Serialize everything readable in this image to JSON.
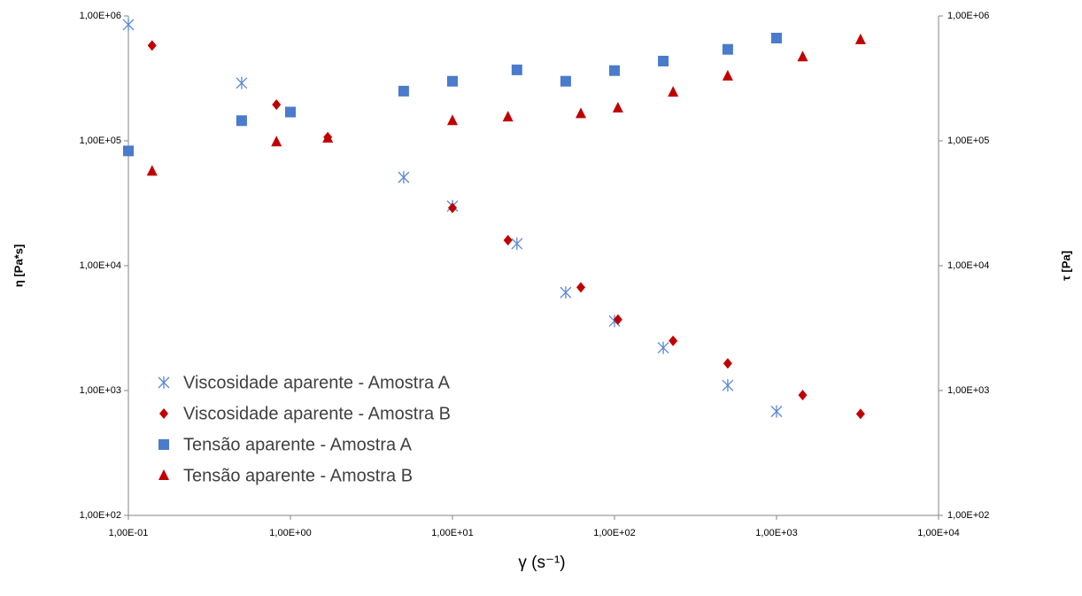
{
  "chart_data": {
    "type": "scatter",
    "x_label": "γ  (s⁻¹)",
    "y_label": "η [Pa*s]",
    "y2_label": "τ [Pa]",
    "log_x": true,
    "log_y": true,
    "grid": false,
    "legend": "lower-left",
    "xlim": [
      0.1,
      10000
    ],
    "xticks": [
      {
        "value": 0.1,
        "label": "1,00E-01"
      },
      {
        "value": 1,
        "label": "1,00E+00"
      },
      {
        "value": 10,
        "label": "1,00E+01"
      },
      {
        "value": 100,
        "label": "1,00E+02"
      },
      {
        "value": 1000,
        "label": "1,00E+03"
      },
      {
        "value": 10000,
        "label": "1,00E+04"
      }
    ],
    "ylim": [
      100,
      1000000
    ],
    "yticks": [
      {
        "value": 100,
        "label": "1,00E+02"
      },
      {
        "value": 1000,
        "label": "1,00E+03"
      },
      {
        "value": 10000,
        "label": "1,00E+04"
      },
      {
        "value": 100000,
        "label": "1,00E+05"
      },
      {
        "value": 1000000,
        "label": "1,00E+06"
      }
    ],
    "y2lim": [
      100,
      1000000
    ],
    "y2ticks": [
      {
        "value": 100,
        "label": "1,00E+02"
      },
      {
        "value": 1000,
        "label": "1,00E+03"
      },
      {
        "value": 10000,
        "label": "1,00E+04"
      },
      {
        "value": 100000,
        "label": "1,00E+05"
      },
      {
        "value": 1000000,
        "label": "1,00E+06"
      }
    ],
    "series": [
      {
        "name": "Viscosidade aparente - Amostra A",
        "color": "#5b87d6",
        "marker": "asterisk",
        "x": [
          0.1,
          0.5,
          5,
          10,
          25,
          50,
          100,
          200,
          500,
          1000
        ],
        "values": [
          850000,
          290000,
          51000,
          30000,
          15000,
          6100,
          3600,
          2200,
          1100,
          680
        ]
      },
      {
        "name": "Viscosidade aparente - Amostra B",
        "color": "#c00000",
        "marker": "diamond",
        "x": [
          0.14,
          0.82,
          1.7,
          10,
          22,
          62,
          105,
          230,
          500,
          1450,
          3300
        ],
        "values": [
          580000,
          195000,
          107000,
          29000,
          16000,
          6700,
          3700,
          2500,
          1650,
          920,
          650
        ]
      },
      {
        "name": "Tensão aparente - Amostra A",
        "color": "#4a7bcc",
        "marker": "square",
        "axis": "y2",
        "x": [
          0.1,
          0.5,
          1,
          5,
          10,
          25,
          50,
          100,
          200,
          500,
          1000
        ],
        "values": [
          83000,
          145000,
          170000,
          250000,
          300000,
          370000,
          300000,
          365000,
          435000,
          540000,
          665000
        ]
      },
      {
        "name": "Tensão aparente - Amostra B",
        "color": "#c00000",
        "marker": "triangle",
        "axis": "y2",
        "x": [
          0.14,
          0.82,
          1.7,
          10,
          22,
          62,
          105,
          230,
          500,
          1450,
          3300
        ],
        "values": [
          57000,
          98000,
          105000,
          145000,
          155000,
          165000,
          183000,
          245000,
          330000,
          470000,
          645000
        ]
      }
    ]
  }
}
